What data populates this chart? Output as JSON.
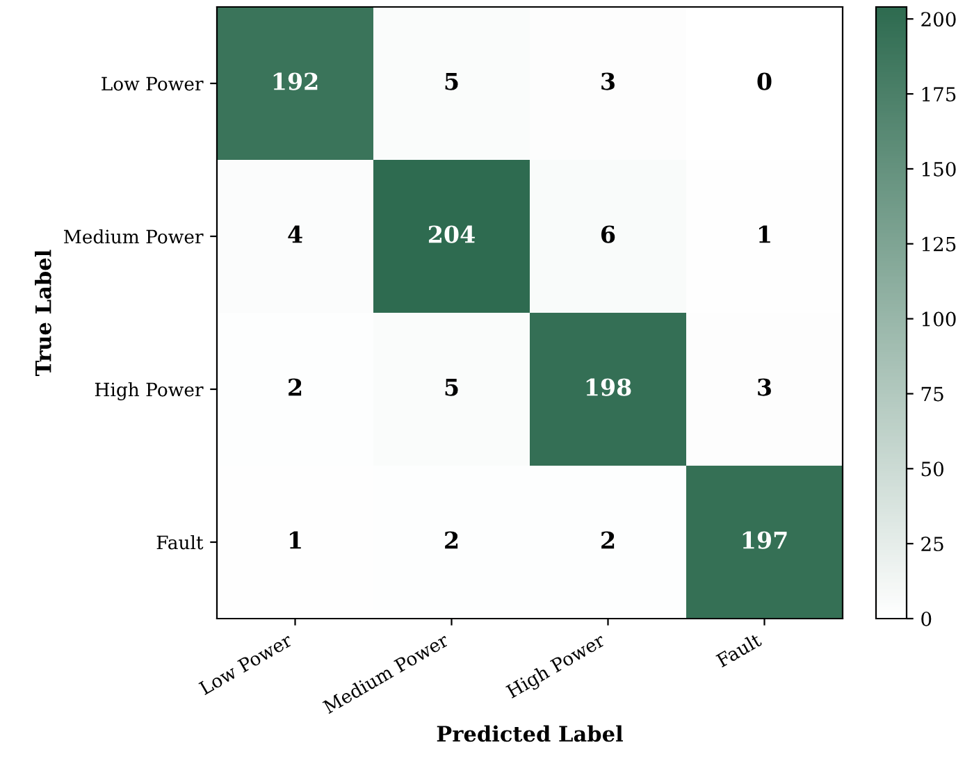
{
  "chart_data": {
    "type": "heatmap",
    "xlabel": "Predicted Label",
    "ylabel": "True Label",
    "categories": [
      "Low Power",
      "Medium Power",
      "High Power",
      "Fault"
    ],
    "y_categories": [
      "Low Power",
      "Medium Power",
      "High Power",
      "Fault"
    ],
    "cells": [
      [
        192,
        5,
        3,
        0
      ],
      [
        4,
        204,
        6,
        1
      ],
      [
        2,
        5,
        198,
        3
      ],
      [
        1,
        2,
        2,
        197
      ]
    ],
    "data_labels": true,
    "clim": [
      0,
      204
    ],
    "cticks": [
      0,
      25,
      50,
      75,
      100,
      125,
      150,
      175,
      200
    ]
  }
}
